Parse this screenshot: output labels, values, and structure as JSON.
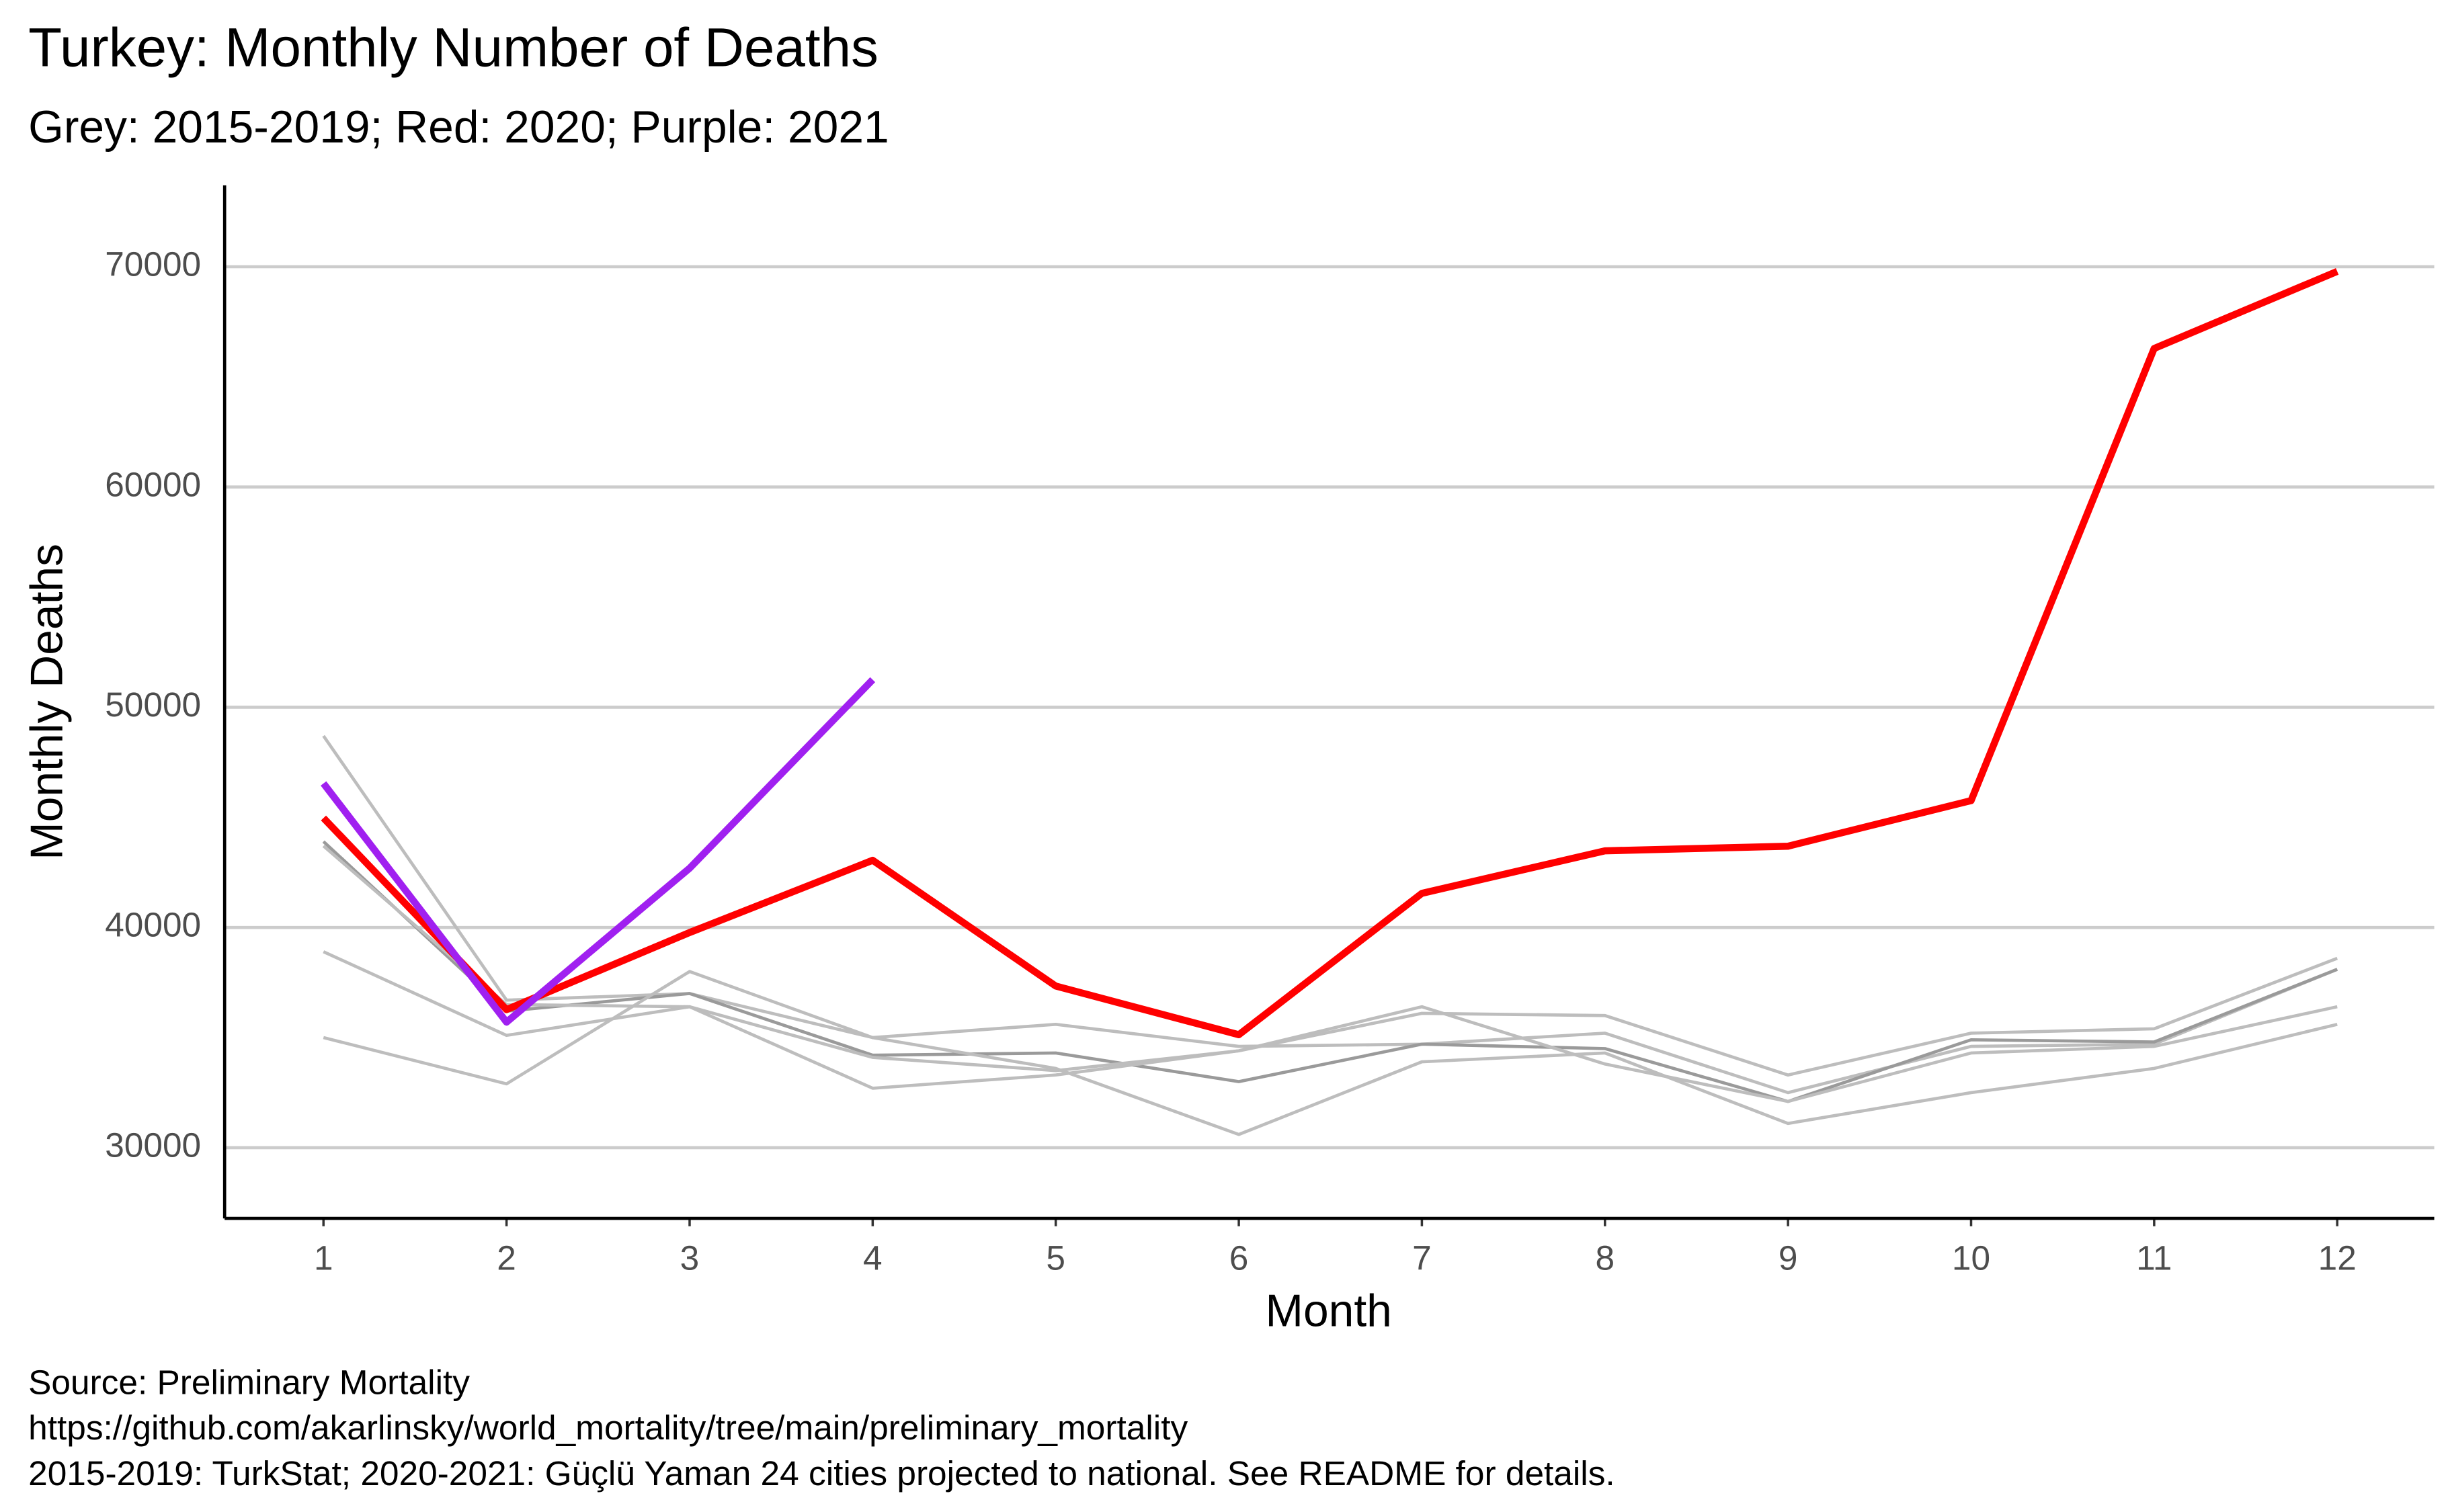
{
  "chart_data": {
    "type": "line",
    "title": "Turkey: Monthly Number of Deaths",
    "subtitle": "Grey: 2015-2019; Red: 2020; Purple: 2021",
    "x_label": "Month",
    "y_label": "Monthly Deaths",
    "caption": [
      "Source: Preliminary Mortality",
      "https://github.com/akarlinsky/world_mortality/tree/main/preliminary_mortality",
      "2015-2019: TurkStat; 2020-2021: Güçlü Yaman 24 cities projected to national. See README for details."
    ],
    "x": [
      1,
      2,
      3,
      4,
      5,
      6,
      7,
      8,
      9,
      10,
      11,
      12
    ],
    "series": [
      {
        "color": "#bdbdbd",
        "values": [
          48700,
          36700,
          37000,
          35000,
          35600,
          34600,
          34700,
          35200,
          32500,
          34600,
          34700,
          38100
        ]
      },
      {
        "color": "#9a9a9a",
        "values": [
          43900,
          36200,
          37000,
          34200,
          34300,
          33000,
          34700,
          34500,
          32100,
          34900,
          34800,
          38100
        ]
      },
      {
        "color": "#bdbdbd",
        "values": [
          43700,
          36500,
          36400,
          34100,
          33500,
          34400,
          36100,
          36000,
          33300,
          35200,
          35400,
          38600
        ]
      },
      {
        "color": "#bdbdbd",
        "values": [
          38900,
          35100,
          36400,
          32700,
          33300,
          34400,
          36400,
          33800,
          32100,
          34300,
          34600,
          36400
        ]
      },
      {
        "color": "#bdbdbd",
        "values": [
          35000,
          32900,
          38000,
          35000,
          33600,
          30600,
          33900,
          34300,
          31100,
          32500,
          33600,
          35600
        ]
      },
      {
        "color": "#ff0000",
        "values": [
          44970,
          36270,
          39770,
          43050,
          37340,
          35130,
          41550,
          43480,
          43690,
          45760,
          66290,
          69790
        ]
      },
      {
        "color": "#a020f0",
        "values": [
          46540,
          35700,
          42690,
          51250,
          null,
          null,
          null,
          null,
          null,
          null,
          null,
          null
        ]
      }
    ],
    "xlim": [
      0.46,
      12.53
    ],
    "xticks": [
      1,
      2,
      3,
      4,
      5,
      6,
      7,
      8,
      9,
      10,
      11,
      12
    ],
    "ylim": [
      26790,
      73700
    ],
    "yticks": [
      30000,
      40000,
      50000,
      60000,
      70000
    ],
    "grid": true
  }
}
